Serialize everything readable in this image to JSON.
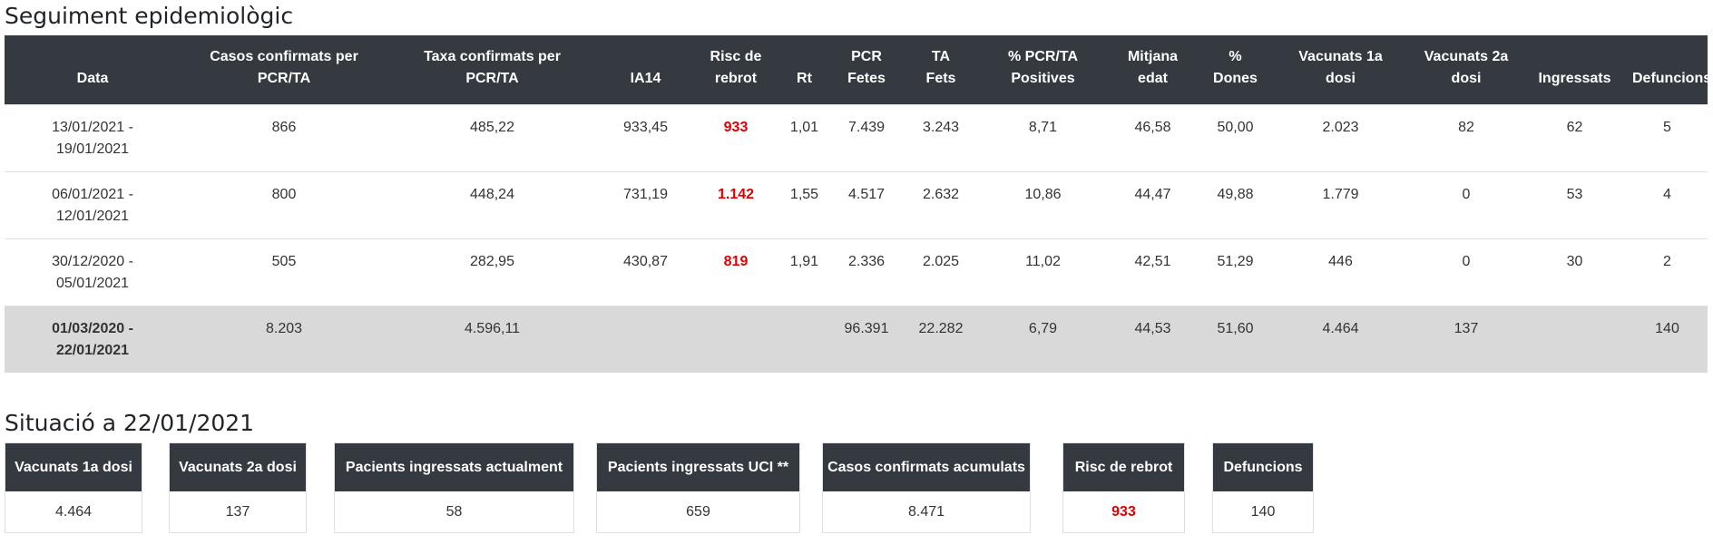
{
  "section1_title": "Seguiment epidemiològic",
  "section2_title": "Situació a 22/01/2021",
  "table": {
    "headers": [
      "Data",
      "Casos confirmats per\nPCR/TA",
      "Taxa confirmats per\nPCR/TA",
      "IA14",
      "Risc de\nrebrot",
      "Rt",
      "PCR\nFetes",
      "TA\nFets",
      "% PCR/TA\nPositives",
      "Mitjana\nedat",
      "%\nDones",
      "Vacunats 1a\ndosi",
      "Vacunats 2a\ndosi",
      "Ingressats",
      "Defuncions"
    ],
    "rows": [
      [
        "13/01/2021 -\n19/01/2021",
        "866",
        "485,22",
        "933,45",
        "933",
        "1,01",
        "7.439",
        "3.243",
        "8,71",
        "46,58",
        "50,00",
        "2.023",
        "82",
        "62",
        "5"
      ],
      [
        "06/01/2021 -\n12/01/2021",
        "800",
        "448,24",
        "731,19",
        "1.142",
        "1,55",
        "4.517",
        "2.632",
        "10,86",
        "44,47",
        "49,88",
        "1.779",
        "0",
        "53",
        "4"
      ],
      [
        "30/12/2020 -\n05/01/2021",
        "505",
        "282,95",
        "430,87",
        "819",
        "1,91",
        "2.336",
        "2.025",
        "11,02",
        "42,51",
        "51,29",
        "446",
        "0",
        "30",
        "2"
      ]
    ],
    "total_row": [
      "01/03/2020 -\n22/01/2021",
      "8.203",
      "4.596,11",
      "",
      "",
      "",
      "96.391",
      "22.282",
      "6,79",
      "44,53",
      "51,60",
      "4.464",
      "137",
      "",
      "140"
    ]
  },
  "cards": [
    {
      "label": "Vacunats 1a dosi",
      "value": "4.464"
    },
    {
      "label": "Vacunats 2a dosi",
      "value": "137"
    },
    {
      "label": "Pacients ingressats actualment",
      "value": "58"
    },
    {
      "label": "Pacients ingressats UCI **",
      "value": "659"
    },
    {
      "label": "Casos confirmats acumulats",
      "value": "8.471"
    },
    {
      "label": "Risc de rebrot",
      "value": "933"
    },
    {
      "label": "Defuncions",
      "value": "140"
    }
  ],
  "colors": {
    "header_bg": "#343a40",
    "total_row_bg": "#d9d9d9",
    "risk_red": "#e00000"
  }
}
